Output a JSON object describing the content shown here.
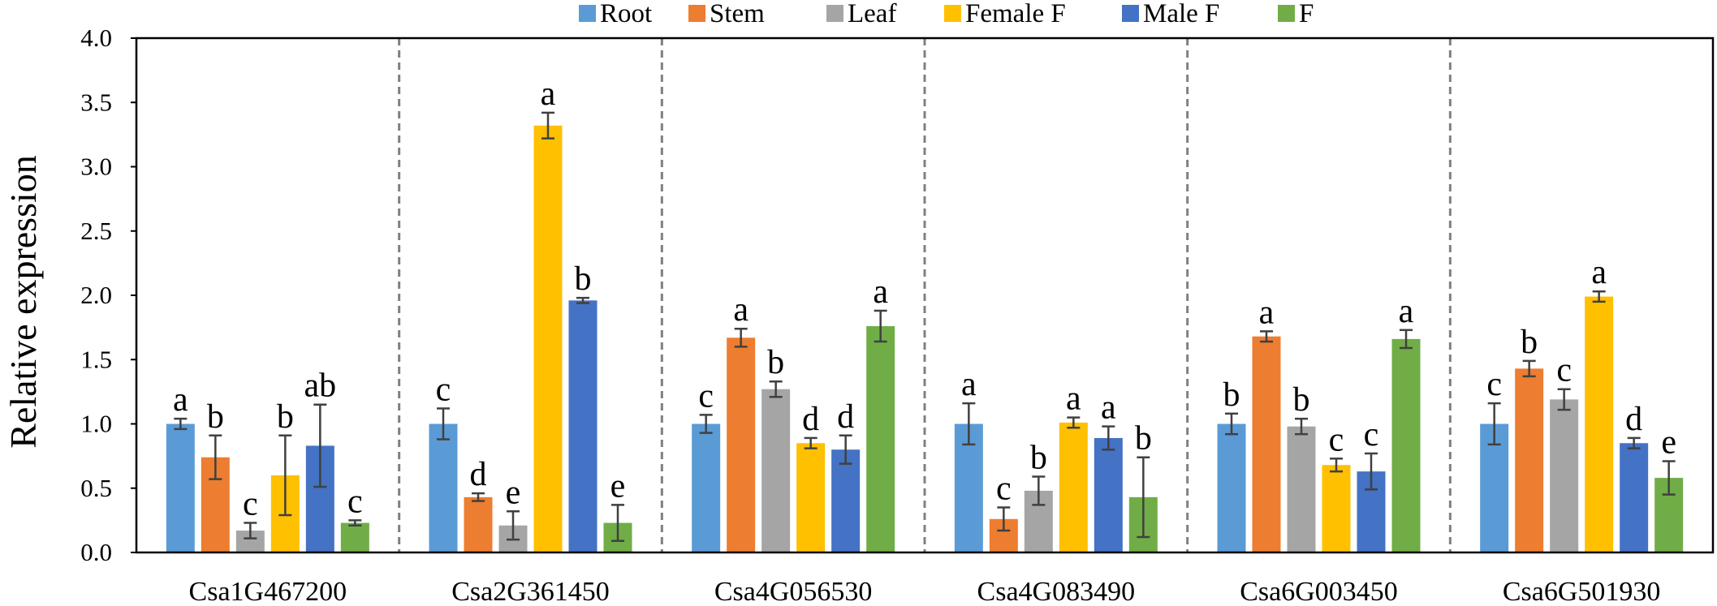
{
  "chart_data": {
    "type": "bar",
    "title": "",
    "xlabel": "",
    "ylabel": "Relative expression",
    "ylim": [
      0,
      4.0
    ],
    "yticks": [
      "0.0",
      "0.5",
      "1.0",
      "1.5",
      "2.0",
      "2.5",
      "3.0",
      "3.5",
      "4.0"
    ],
    "grid": false,
    "legend_position": "top",
    "categories": [
      "Csa1G467200",
      "Csa2G361450",
      "Csa4G056530",
      "Csa4G083490",
      "Csa6G003450",
      "Csa6G501930"
    ],
    "series": [
      {
        "name": "Root",
        "color": "#5b9bd5",
        "values": [
          1.0,
          1.0,
          1.0,
          1.0,
          1.0,
          1.0
        ],
        "errors": [
          0.04,
          0.12,
          0.07,
          0.16,
          0.08,
          0.16
        ],
        "letters": [
          "a",
          "c",
          "c",
          "a",
          "b",
          "c"
        ]
      },
      {
        "name": "Stem",
        "color": "#ed7d31",
        "values": [
          0.74,
          0.43,
          1.67,
          0.26,
          1.68,
          1.43
        ],
        "errors": [
          0.17,
          0.03,
          0.07,
          0.09,
          0.04,
          0.06
        ],
        "letters": [
          "b",
          "d",
          "a",
          "c",
          "a",
          "b"
        ]
      },
      {
        "name": "Leaf",
        "color": "#a5a5a5",
        "values": [
          0.17,
          0.21,
          1.27,
          0.48,
          0.98,
          1.19
        ],
        "errors": [
          0.06,
          0.11,
          0.06,
          0.11,
          0.06,
          0.08
        ],
        "letters": [
          "c",
          "e",
          "b",
          "b",
          "b",
          "c"
        ]
      },
      {
        "name": "Female F",
        "color": "#ffc000",
        "values": [
          0.6,
          3.32,
          0.85,
          1.01,
          0.68,
          1.99
        ],
        "errors": [
          0.31,
          0.1,
          0.04,
          0.04,
          0.05,
          0.04
        ],
        "letters": [
          "b",
          "a",
          "d",
          "a",
          "c",
          "a"
        ]
      },
      {
        "name": "Male F",
        "color": "#4472c4",
        "values": [
          0.83,
          1.96,
          0.8,
          0.89,
          0.63,
          0.85
        ],
        "errors": [
          0.32,
          0.02,
          0.11,
          0.09,
          0.14,
          0.04
        ],
        "letters": [
          "ab",
          "b",
          "d",
          "a",
          "c",
          "d"
        ]
      },
      {
        "name": "F",
        "color": "#70ad47",
        "values": [
          0.23,
          0.23,
          1.76,
          0.43,
          1.66,
          0.58
        ],
        "errors": [
          0.02,
          0.14,
          0.12,
          0.31,
          0.07,
          0.13
        ],
        "letters": [
          "c",
          "e",
          "a",
          "b",
          "a",
          "e"
        ]
      }
    ]
  }
}
